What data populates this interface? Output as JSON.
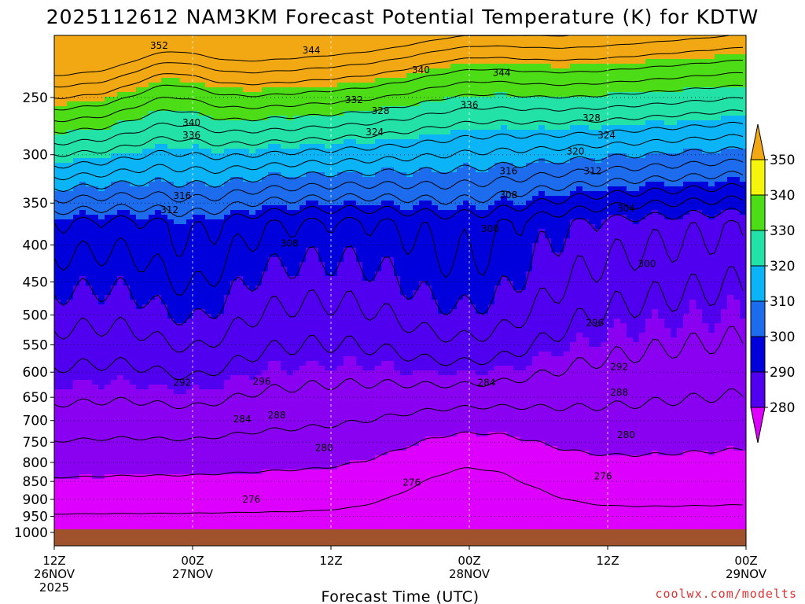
{
  "chart_data": {
    "type": "contour",
    "title": "2025112612 NAM3KM Forecast Potential Temperature (K) for KDTW",
    "xlabel": "Forecast Time (UTC)",
    "ylabel": "",
    "y_ticks": [
      "250",
      "300",
      "350",
      "400",
      "450",
      "500",
      "550",
      "600",
      "650",
      "700",
      "750",
      "800",
      "850",
      "900",
      "950",
      "1000"
    ],
    "x_ticks": [
      {
        "hour": 0,
        "lines": [
          "12Z",
          "26NOV",
          "2025"
        ]
      },
      {
        "hour": 12,
        "lines": [
          "00Z",
          "27NOV"
        ]
      },
      {
        "hour": 24,
        "lines": [
          "12Z"
        ]
      },
      {
        "hour": 36,
        "lines": [
          "00Z",
          "28NOV"
        ]
      },
      {
        "hour": 48,
        "lines": [
          "12Z"
        ]
      },
      {
        "hour": 60,
        "lines": [
          "00Z",
          "29NOV"
        ]
      }
    ],
    "x_range_hours": [
      0,
      60
    ],
    "y_range_hpa": [
      200,
      1013
    ],
    "surface_pressure_hpa": 985,
    "colorbar": {
      "ticks": [
        "280",
        "290",
        "300",
        "310",
        "320",
        "330",
        "340",
        "350"
      ],
      "colors": [
        "#dd00ff",
        "#8a00f0",
        "#5000ee",
        "#0000dd",
        "#1d6cee",
        "#0ab4f6",
        "#22e2a8",
        "#4ddd16",
        "#f4f40c",
        "#f2a812"
      ]
    },
    "contour_labels": [
      {
        "value": "352",
        "hour": 9.1,
        "p": 212
      },
      {
        "value": "344",
        "hour": 22.3,
        "p": 215
      },
      {
        "value": "340",
        "hour": 31.8,
        "p": 229
      },
      {
        "value": "344",
        "hour": 38.8,
        "p": 231
      },
      {
        "value": "332",
        "hour": 26.0,
        "p": 252
      },
      {
        "value": "328",
        "hour": 28.3,
        "p": 261
      },
      {
        "value": "336",
        "hour": 36.0,
        "p": 256
      },
      {
        "value": "340",
        "hour": 11.9,
        "p": 271
      },
      {
        "value": "336",
        "hour": 11.9,
        "p": 282
      },
      {
        "value": "324",
        "hour": 27.8,
        "p": 279
      },
      {
        "value": "328",
        "hour": 46.6,
        "p": 267
      },
      {
        "value": "324",
        "hour": 47.9,
        "p": 282
      },
      {
        "value": "320",
        "hour": 45.2,
        "p": 297
      },
      {
        "value": "316",
        "hour": 39.4,
        "p": 316
      },
      {
        "value": "312",
        "hour": 46.7,
        "p": 316
      },
      {
        "value": "308",
        "hour": 39.4,
        "p": 341
      },
      {
        "value": "316",
        "hour": 11.1,
        "p": 342
      },
      {
        "value": "312",
        "hour": 10.0,
        "p": 358
      },
      {
        "value": "304",
        "hour": 49.6,
        "p": 356
      },
      {
        "value": "300",
        "hour": 37.8,
        "p": 380
      },
      {
        "value": "308",
        "hour": 20.4,
        "p": 398
      },
      {
        "value": "300",
        "hour": 51.4,
        "p": 425
      },
      {
        "value": "296",
        "hour": 46.9,
        "p": 513
      },
      {
        "value": "292",
        "hour": 49.0,
        "p": 590
      },
      {
        "value": "292",
        "hour": 11.1,
        "p": 620
      },
      {
        "value": "296",
        "hour": 18.0,
        "p": 618
      },
      {
        "value": "284",
        "hour": 37.5,
        "p": 620
      },
      {
        "value": "288",
        "hour": 49.0,
        "p": 640
      },
      {
        "value": "288",
        "hour": 19.3,
        "p": 688
      },
      {
        "value": "284",
        "hour": 16.3,
        "p": 697
      },
      {
        "value": "280",
        "hour": 23.4,
        "p": 764
      },
      {
        "value": "280",
        "hour": 49.6,
        "p": 733
      },
      {
        "value": "276",
        "hour": 31.0,
        "p": 853
      },
      {
        "value": "276",
        "hour": 47.6,
        "p": 836
      },
      {
        "value": "276",
        "hour": 17.1,
        "p": 900
      }
    ]
  },
  "credit": "coolwx.com/modelts"
}
